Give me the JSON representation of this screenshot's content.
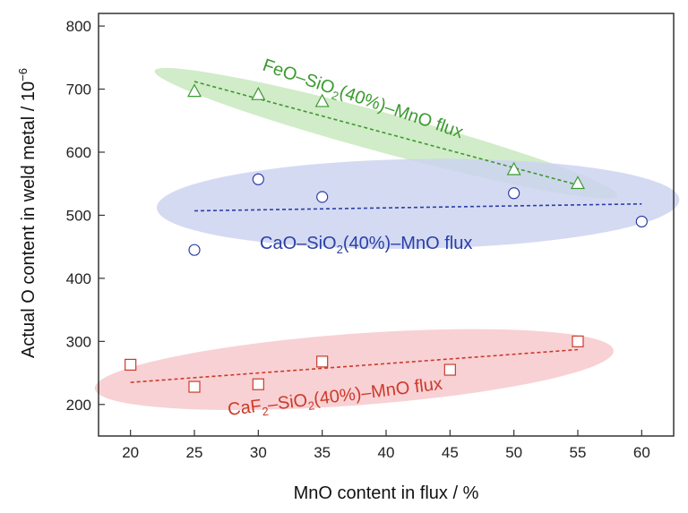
{
  "chart_data": {
    "type": "scatter",
    "xlabel": "MnO content in flux / %",
    "ylabel_main": "Actual O content in weld metal / 10",
    "ylabel_exp": "−6",
    "xlim": [
      17.5,
      62.5
    ],
    "ylim": [
      150,
      820
    ],
    "xticks": [
      20,
      25,
      30,
      35,
      40,
      45,
      50,
      55,
      60
    ],
    "yticks": [
      200,
      300,
      400,
      500,
      600,
      700,
      800
    ],
    "grid": false,
    "series": [
      {
        "name": "FeO–SiO2(40%)–MnO flux",
        "label_parts": [
          "FeO–SiO",
          "2",
          "(40%)–MnO flux"
        ],
        "marker": "triangle",
        "color": "#3a9a2e",
        "shade": "#c9e9be",
        "points": [
          [
            25,
            697
          ],
          [
            30,
            692
          ],
          [
            35,
            681
          ],
          [
            50,
            573
          ],
          [
            55,
            551
          ]
        ],
        "fit": [
          [
            25,
            712
          ],
          [
            55,
            548
          ]
        ]
      },
      {
        "name": "CaO–SiO2(40%)–MnO flux",
        "label_parts": [
          "CaO–SiO",
          "2",
          "(40%)–MnO flux"
        ],
        "marker": "circle",
        "color": "#2b3fa8",
        "shade": "#cdd3f0",
        "points": [
          [
            25,
            445
          ],
          [
            30,
            557
          ],
          [
            35,
            529
          ],
          [
            50,
            535
          ],
          [
            60,
            490
          ]
        ],
        "fit": [
          [
            25,
            507
          ],
          [
            60,
            518
          ]
        ]
      },
      {
        "name": "CaF2–SiO2(40%)–MnO flux",
        "label_parts": [
          "CaF",
          "2",
          "–SiO",
          "2",
          "(40%)–MnO flux"
        ],
        "marker": "square",
        "color": "#cc3a2a",
        "shade": "#f7c9cc",
        "points": [
          [
            20,
            263
          ],
          [
            25,
            228
          ],
          [
            30,
            232
          ],
          [
            35,
            268
          ],
          [
            45,
            255
          ],
          [
            55,
            300
          ]
        ],
        "fit": [
          [
            20,
            235
          ],
          [
            55,
            287
          ]
        ]
      }
    ]
  }
}
